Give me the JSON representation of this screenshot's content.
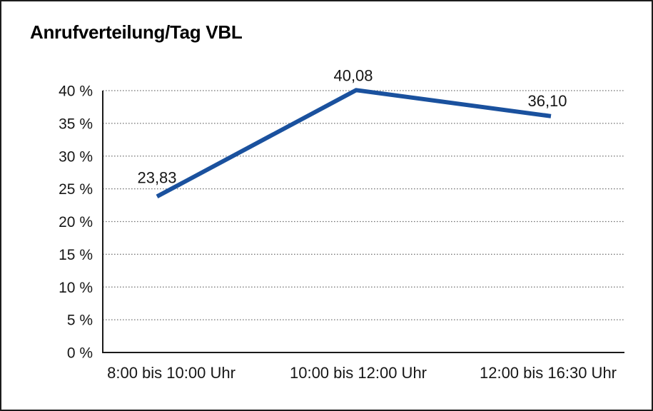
{
  "chart_data": {
    "type": "line",
    "title": "Anrufverteilung/Tag VBL",
    "categories": [
      "8:00 bis 10:00 Uhr",
      "10:00 bis 12:00 Uhr",
      "12:00 bis 16:30 Uhr"
    ],
    "values": [
      23.83,
      40.08,
      36.1
    ],
    "point_labels": [
      "23,83",
      "40,08",
      "36,10"
    ],
    "y_ticks": [
      {
        "value": 0,
        "label": "0 %"
      },
      {
        "value": 5,
        "label": "5 %"
      },
      {
        "value": 10,
        "label": "10 %"
      },
      {
        "value": 15,
        "label": "15 %"
      },
      {
        "value": 20,
        "label": "20 %"
      },
      {
        "value": 25,
        "label": "25 %"
      },
      {
        "value": 30,
        "label": "30 %"
      },
      {
        "value": 35,
        "label": "35 %"
      },
      {
        "value": 40,
        "label": "40 %"
      }
    ],
    "ylim": [
      0,
      40
    ],
    "xlabel": "",
    "ylabel": "",
    "grid": "horizontal-dotted",
    "legend": "none",
    "line_color": "#1a519e",
    "text_color": "#161616",
    "axis_color": "#1a1a1a",
    "background_color": "#ffffff"
  }
}
